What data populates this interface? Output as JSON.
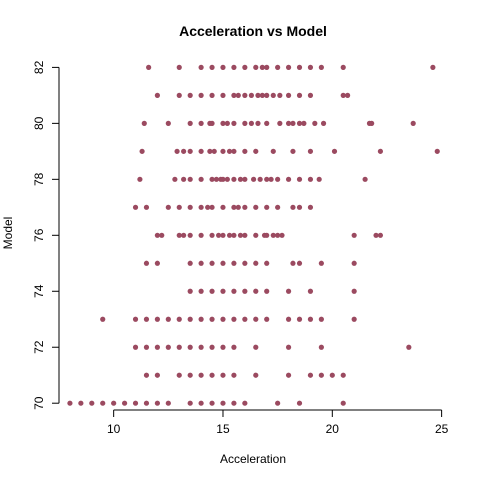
{
  "chart_data": {
    "type": "scatter",
    "title": "Acceleration vs Model",
    "xlabel": "Acceleration",
    "ylabel": "Model",
    "xlim": [
      7.5,
      25.2
    ],
    "ylim": [
      69.9,
      82.3
    ],
    "xticks": [
      10,
      15,
      20,
      25
    ],
    "yticks": [
      70,
      72,
      74,
      76,
      78,
      80,
      82
    ],
    "grid": false,
    "point_color": "#9B4A60",
    "points": [
      [
        8.0,
        70
      ],
      [
        8.5,
        70
      ],
      [
        9.0,
        70
      ],
      [
        9.5,
        70
      ],
      [
        10.0,
        70
      ],
      [
        10.5,
        70
      ],
      [
        11.0,
        70
      ],
      [
        11.5,
        70
      ],
      [
        12.0,
        70
      ],
      [
        12.5,
        70
      ],
      [
        13.5,
        70
      ],
      [
        14.0,
        70
      ],
      [
        14.5,
        70
      ],
      [
        15.0,
        70
      ],
      [
        15.5,
        70
      ],
      [
        16.0,
        70
      ],
      [
        17.5,
        70
      ],
      [
        18.5,
        70
      ],
      [
        20.5,
        70
      ],
      [
        11.5,
        71
      ],
      [
        12.0,
        71
      ],
      [
        13.0,
        71
      ],
      [
        13.5,
        71
      ],
      [
        14.0,
        71
      ],
      [
        14.5,
        71
      ],
      [
        15.0,
        71
      ],
      [
        15.5,
        71
      ],
      [
        16.5,
        71
      ],
      [
        18.0,
        71
      ],
      [
        19.0,
        71
      ],
      [
        19.5,
        71
      ],
      [
        20.0,
        71
      ],
      [
        20.5,
        71
      ],
      [
        11.0,
        72
      ],
      [
        11.5,
        72
      ],
      [
        12.0,
        72
      ],
      [
        12.5,
        72
      ],
      [
        13.0,
        72
      ],
      [
        13.5,
        72
      ],
      [
        14.0,
        72
      ],
      [
        14.5,
        72
      ],
      [
        15.0,
        72
      ],
      [
        15.5,
        72
      ],
      [
        16.5,
        72
      ],
      [
        18.0,
        72
      ],
      [
        19.5,
        72
      ],
      [
        23.5,
        72
      ],
      [
        9.5,
        73
      ],
      [
        11.0,
        73
      ],
      [
        11.5,
        73
      ],
      [
        12.0,
        73
      ],
      [
        12.5,
        73
      ],
      [
        13.0,
        73
      ],
      [
        13.5,
        73
      ],
      [
        14.0,
        73
      ],
      [
        14.5,
        73
      ],
      [
        15.0,
        73
      ],
      [
        15.5,
        73
      ],
      [
        16.0,
        73
      ],
      [
        16.5,
        73
      ],
      [
        17.0,
        73
      ],
      [
        18.0,
        73
      ],
      [
        18.5,
        73
      ],
      [
        19.0,
        73
      ],
      [
        19.5,
        73
      ],
      [
        21.0,
        73
      ],
      [
        13.5,
        74
      ],
      [
        14.0,
        74
      ],
      [
        14.5,
        74
      ],
      [
        15.0,
        74
      ],
      [
        15.5,
        74
      ],
      [
        16.0,
        74
      ],
      [
        16.5,
        74
      ],
      [
        17.0,
        74
      ],
      [
        18.0,
        74
      ],
      [
        19.0,
        74
      ],
      [
        21.0,
        74
      ],
      [
        11.5,
        75
      ],
      [
        12.0,
        75
      ],
      [
        13.5,
        75
      ],
      [
        14.0,
        75
      ],
      [
        14.5,
        75
      ],
      [
        15.0,
        75
      ],
      [
        15.5,
        75
      ],
      [
        16.0,
        75
      ],
      [
        16.5,
        75
      ],
      [
        17.0,
        75
      ],
      [
        18.2,
        75
      ],
      [
        18.5,
        75
      ],
      [
        19.5,
        75
      ],
      [
        21.0,
        75
      ],
      [
        12.0,
        76
      ],
      [
        12.2,
        76
      ],
      [
        13.0,
        76
      ],
      [
        13.2,
        76
      ],
      [
        13.5,
        76
      ],
      [
        14.0,
        76
      ],
      [
        14.5,
        76
      ],
      [
        14.8,
        76
      ],
      [
        15.0,
        76
      ],
      [
        15.3,
        76
      ],
      [
        15.5,
        76
      ],
      [
        15.8,
        76
      ],
      [
        16.0,
        76
      ],
      [
        16.5,
        76
      ],
      [
        16.9,
        76
      ],
      [
        17.0,
        76
      ],
      [
        17.3,
        76
      ],
      [
        17.5,
        76
      ],
      [
        17.7,
        76
      ],
      [
        21.0,
        76
      ],
      [
        22.0,
        76
      ],
      [
        22.2,
        76
      ],
      [
        11.0,
        77
      ],
      [
        11.5,
        77
      ],
      [
        12.5,
        77
      ],
      [
        13.0,
        77
      ],
      [
        13.5,
        77
      ],
      [
        14.0,
        77
      ],
      [
        14.3,
        77
      ],
      [
        14.5,
        77
      ],
      [
        15.0,
        77
      ],
      [
        15.5,
        77
      ],
      [
        15.7,
        77
      ],
      [
        16.0,
        77
      ],
      [
        16.5,
        77
      ],
      [
        17.0,
        77
      ],
      [
        17.5,
        77
      ],
      [
        18.2,
        77
      ],
      [
        18.5,
        77
      ],
      [
        19.0,
        77
      ],
      [
        11.2,
        78
      ],
      [
        12.8,
        78
      ],
      [
        13.2,
        78
      ],
      [
        13.5,
        78
      ],
      [
        14.0,
        78
      ],
      [
        14.5,
        78
      ],
      [
        14.7,
        78
      ],
      [
        14.9,
        78
      ],
      [
        15.0,
        78
      ],
      [
        15.2,
        78
      ],
      [
        15.5,
        78
      ],
      [
        15.8,
        78
      ],
      [
        16.0,
        78
      ],
      [
        16.4,
        78
      ],
      [
        16.7,
        78
      ],
      [
        17.0,
        78
      ],
      [
        17.2,
        78
      ],
      [
        17.5,
        78
      ],
      [
        18.0,
        78
      ],
      [
        18.5,
        78
      ],
      [
        19.0,
        78
      ],
      [
        19.4,
        78
      ],
      [
        21.5,
        78
      ],
      [
        11.3,
        79
      ],
      [
        12.9,
        79
      ],
      [
        13.2,
        79
      ],
      [
        13.5,
        79
      ],
      [
        14.0,
        79
      ],
      [
        14.4,
        79
      ],
      [
        14.6,
        79
      ],
      [
        15.0,
        79
      ],
      [
        15.3,
        79
      ],
      [
        15.5,
        79
      ],
      [
        16.0,
        79
      ],
      [
        16.5,
        79
      ],
      [
        17.3,
        79
      ],
      [
        18.2,
        79
      ],
      [
        19.0,
        79
      ],
      [
        20.1,
        79
      ],
      [
        22.2,
        79
      ],
      [
        24.8,
        79
      ],
      [
        11.4,
        80
      ],
      [
        12.5,
        80
      ],
      [
        13.5,
        80
      ],
      [
        14.0,
        80
      ],
      [
        14.4,
        80
      ],
      [
        14.5,
        80
      ],
      [
        15.0,
        80
      ],
      [
        15.2,
        80
      ],
      [
        15.5,
        80
      ],
      [
        16.0,
        80
      ],
      [
        16.3,
        80
      ],
      [
        16.6,
        80
      ],
      [
        17.0,
        80
      ],
      [
        17.6,
        80
      ],
      [
        18.0,
        80
      ],
      [
        18.2,
        80
      ],
      [
        18.5,
        80
      ],
      [
        18.7,
        80
      ],
      [
        19.2,
        80
      ],
      [
        19.6,
        80
      ],
      [
        21.7,
        80
      ],
      [
        21.8,
        80
      ],
      [
        23.7,
        80
      ],
      [
        12.0,
        81
      ],
      [
        13.0,
        81
      ],
      [
        13.5,
        81
      ],
      [
        14.0,
        81
      ],
      [
        14.5,
        81
      ],
      [
        15.0,
        81
      ],
      [
        15.5,
        81
      ],
      [
        15.7,
        81
      ],
      [
        16.0,
        81
      ],
      [
        16.3,
        81
      ],
      [
        16.6,
        81
      ],
      [
        16.8,
        81
      ],
      [
        17.0,
        81
      ],
      [
        17.3,
        81
      ],
      [
        17.6,
        81
      ],
      [
        18.0,
        81
      ],
      [
        18.5,
        81
      ],
      [
        19.0,
        81
      ],
      [
        20.5,
        81
      ],
      [
        20.7,
        81
      ],
      [
        11.6,
        82
      ],
      [
        13.0,
        82
      ],
      [
        14.0,
        82
      ],
      [
        14.5,
        82
      ],
      [
        15.0,
        82
      ],
      [
        15.5,
        82
      ],
      [
        16.0,
        82
      ],
      [
        16.5,
        82
      ],
      [
        16.8,
        82
      ],
      [
        17.0,
        82
      ],
      [
        17.5,
        82
      ],
      [
        18.0,
        82
      ],
      [
        18.5,
        82
      ],
      [
        19.0,
        82
      ],
      [
        19.5,
        82
      ],
      [
        20.5,
        82
      ],
      [
        24.6,
        82
      ]
    ]
  }
}
